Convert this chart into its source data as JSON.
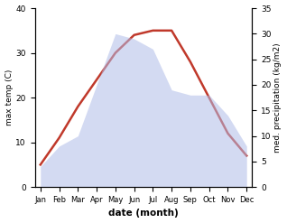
{
  "months": [
    "Jan",
    "Feb",
    "Mar",
    "Apr",
    "May",
    "Jun",
    "Jul",
    "Aug",
    "Sep",
    "Oct",
    "Nov",
    "Dec"
  ],
  "temperature": [
    5,
    11,
    18,
    24,
    30,
    34,
    35,
    35,
    28,
    20,
    12,
    7
  ],
  "precipitation": [
    4,
    8,
    10,
    20,
    30,
    29,
    27,
    19,
    18,
    18,
    14,
    8
  ],
  "temp_color": "#c0392b",
  "precip_color": "#b0bce8",
  "temp_ylim": [
    0,
    40
  ],
  "precip_ylim": [
    0,
    35
  ],
  "temp_yticks": [
    0,
    10,
    20,
    30,
    40
  ],
  "precip_yticks": [
    0,
    5,
    10,
    15,
    20,
    25,
    30,
    35
  ],
  "ylabel_left": "max temp (C)",
  "ylabel_right": "med. precipitation (kg/m2)",
  "xlabel": "date (month)",
  "line_width": 1.8,
  "fill_alpha": 0.55,
  "background_color": "#ffffff"
}
